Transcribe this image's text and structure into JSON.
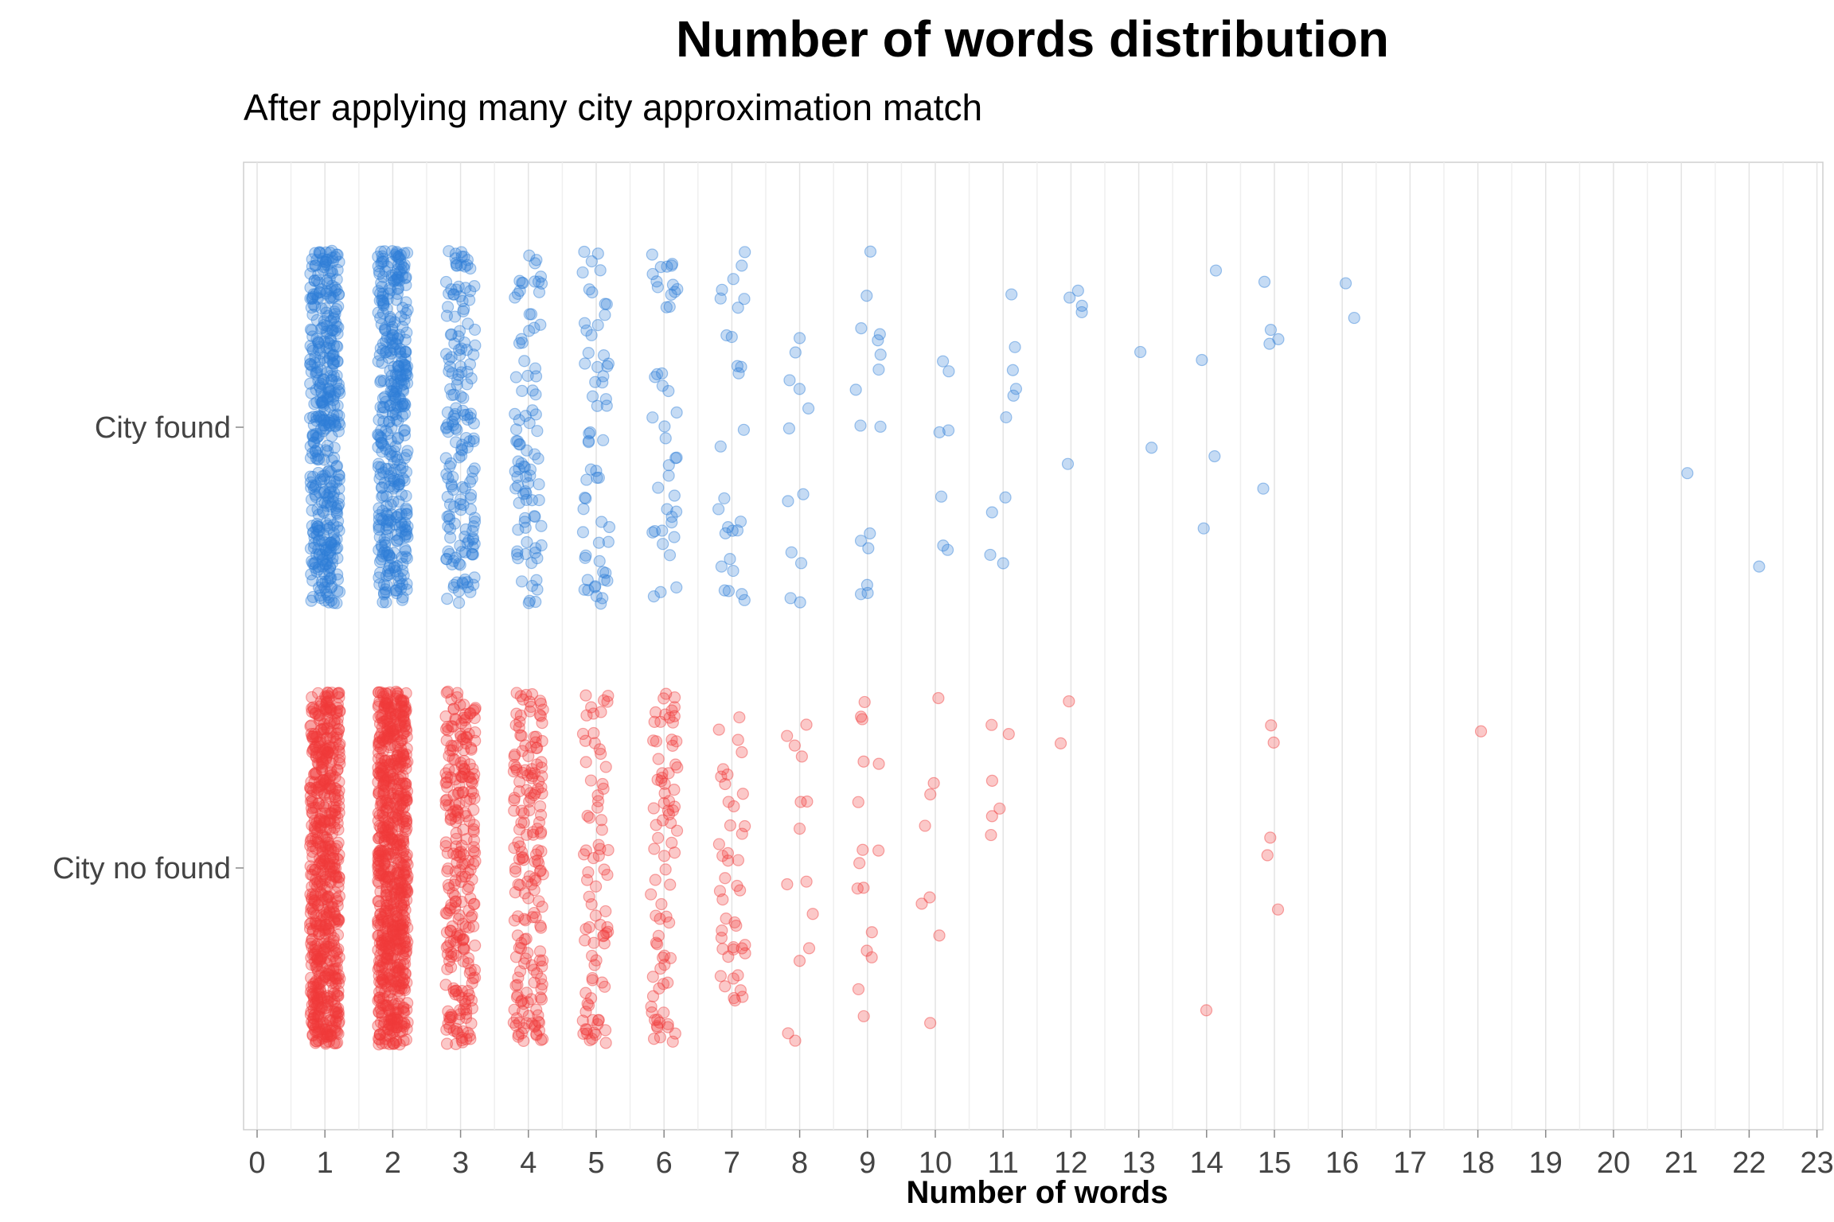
{
  "chart_data": {
    "type": "scatter",
    "title": "Number of words distribution",
    "subtitle": "After applying many city approximation match",
    "xlabel": "Number of words",
    "ylabel": "",
    "xlim": [
      0,
      23
    ],
    "x_ticks": [
      "0",
      "1",
      "2",
      "3",
      "4",
      "5",
      "6",
      "7",
      "8",
      "9",
      "10",
      "11",
      "12",
      "13",
      "14",
      "15",
      "16",
      "17",
      "18",
      "19",
      "20",
      "21",
      "22",
      "23"
    ],
    "categories": [
      "City found",
      "City no found"
    ],
    "grid": "vertical",
    "jitter": true,
    "colors": {
      "City found": "#2f7ed8",
      "City no found": "#ef3b3b"
    },
    "series": [
      {
        "category": "City found",
        "counts": {
          "1": 420,
          "2": 380,
          "3": 170,
          "4": 90,
          "5": 60,
          "6": 42,
          "7": 28,
          "8": 12,
          "9": 16,
          "10": 7,
          "11": 10,
          "12": 5,
          "13": 2,
          "14": 4,
          "15": 5,
          "16": 2,
          "21": 1,
          "22": 1
        }
      },
      {
        "category": "City no found",
        "counts": {
          "1": 620,
          "2": 720,
          "3": 260,
          "4": 180,
          "5": 80,
          "6": 80,
          "7": 44,
          "8": 14,
          "9": 16,
          "10": 8,
          "11": 6,
          "12": 2,
          "14": 1,
          "15": 5,
          "18": 1
        }
      }
    ]
  }
}
